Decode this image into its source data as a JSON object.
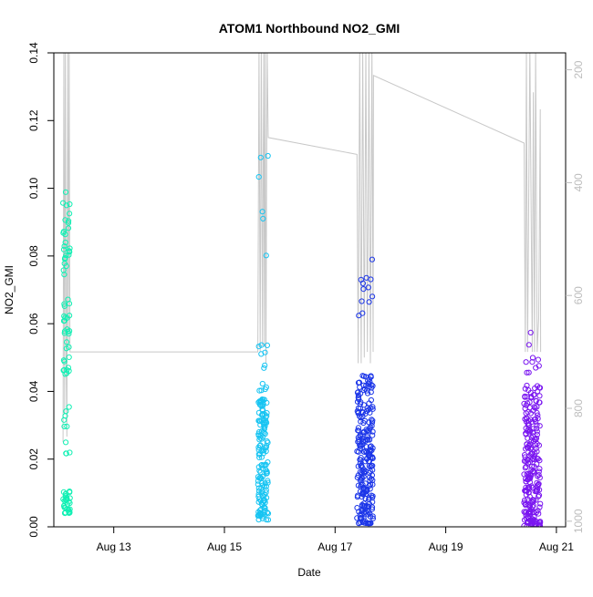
{
  "chart_data": {
    "type": "scatter",
    "title": "ATOM1 Northbound NO2_GMI",
    "xlabel": "Date",
    "ylabel": "NO2_GMI",
    "secondary_axis_label": "",
    "xlim": [
      "2016-08-11T22:00",
      "2016-08-21T04:00"
    ],
    "ylim": [
      0,
      0.14
    ],
    "y2lim": [
      1010,
      170
    ],
    "x_ticks": [
      {
        "value": "2016-08-13T00:00",
        "label": "Aug 13"
      },
      {
        "value": "2016-08-15T00:00",
        "label": "Aug 15"
      },
      {
        "value": "2016-08-17T00:00",
        "label": "Aug 17"
      },
      {
        "value": "2016-08-19T00:00",
        "label": "Aug 19"
      },
      {
        "value": "2016-08-21T00:00",
        "label": "Aug 21"
      }
    ],
    "y_ticks": [
      "0.00",
      "0.02",
      "0.04",
      "0.06",
      "0.08",
      "0.10",
      "0.12",
      "0.14"
    ],
    "y2_ticks": [
      "200",
      "400",
      "600",
      "800",
      "1000"
    ],
    "grid": false,
    "legend": "none",
    "colors": {
      "flight1": "#11f0b4",
      "flight2": "#17c4f2",
      "flight3": "#1c36e8",
      "flight4": "#7a16f0",
      "pressure_line": "#c8c8c8",
      "axis": "#000000",
      "secondary_axis": "#bdbdbd"
    },
    "flights": [
      {
        "date": "2016-08-12",
        "start": "02:00",
        "end": "05:00",
        "color": "#11f0b4"
      },
      {
        "date": "2016-08-15",
        "start": "14:30",
        "end": "19:00",
        "color": "#17c4f2"
      },
      {
        "date": "2016-08-17",
        "start": "09:30",
        "end": "16:30",
        "color": "#1c36e8"
      },
      {
        "date": "2016-08-20",
        "start": "10:00",
        "end": "17:00",
        "color": "#7a16f0"
      }
    ],
    "pressure_points": [
      [
        "2016-08-12T02:00",
        860
      ],
      [
        "2016-08-12T02:20",
        160
      ],
      [
        "2016-08-12T02:40",
        810
      ],
      [
        "2016-08-12T03:00",
        160
      ],
      [
        "2016-08-12T03:20",
        720
      ],
      [
        "2016-08-12T03:40",
        850
      ],
      [
        "2016-08-12T04:00",
        160
      ],
      [
        "2016-08-12T04:20",
        690
      ],
      [
        "2016-08-12T04:40",
        160
      ],
      [
        "2016-08-12T05:00",
        700
      ],
      [
        "2016-08-15T14:30",
        700
      ],
      [
        "2016-08-15T15:00",
        160
      ],
      [
        "2016-08-15T15:30",
        700
      ],
      [
        "2016-08-15T16:00",
        160
      ],
      [
        "2016-08-15T16:30",
        690
      ],
      [
        "2016-08-15T17:00",
        160
      ],
      [
        "2016-08-15T17:20",
        690
      ],
      [
        "2016-08-15T17:40",
        160
      ],
      [
        "2016-08-15T18:00",
        720
      ],
      [
        "2016-08-15T18:30",
        160
      ],
      [
        "2016-08-15T19:00",
        320
      ],
      [
        "2016-08-17T09:30",
        350
      ],
      [
        "2016-08-17T10:00",
        720
      ],
      [
        "2016-08-17T10:40",
        160
      ],
      [
        "2016-08-17T11:20",
        720
      ],
      [
        "2016-08-17T12:00",
        160
      ],
      [
        "2016-08-17T12:40",
        710
      ],
      [
        "2016-08-17T13:20",
        160
      ],
      [
        "2016-08-17T14:00",
        700
      ],
      [
        "2016-08-17T14:40",
        160
      ],
      [
        "2016-08-17T15:20",
        720
      ],
      [
        "2016-08-17T16:00",
        160
      ],
      [
        "2016-08-17T16:30",
        700
      ],
      [
        "2016-08-17T16:40",
        210
      ],
      [
        "2016-08-20T10:00",
        330
      ],
      [
        "2016-08-20T10:30",
        700
      ],
      [
        "2016-08-20T11:00",
        160
      ],
      [
        "2016-08-20T11:30",
        700
      ],
      [
        "2016-08-20T12:30",
        160
      ],
      [
        "2016-08-20T13:30",
        700
      ],
      [
        "2016-08-20T14:00",
        240
      ],
      [
        "2016-08-20T14:30",
        700
      ],
      [
        "2016-08-20T15:00",
        160
      ],
      [
        "2016-08-20T15:40",
        700
      ],
      [
        "2016-08-20T16:20",
        640
      ],
      [
        "2016-08-20T17:00",
        270
      ],
      [
        "2016-08-20T17:10",
        700
      ]
    ]
  }
}
